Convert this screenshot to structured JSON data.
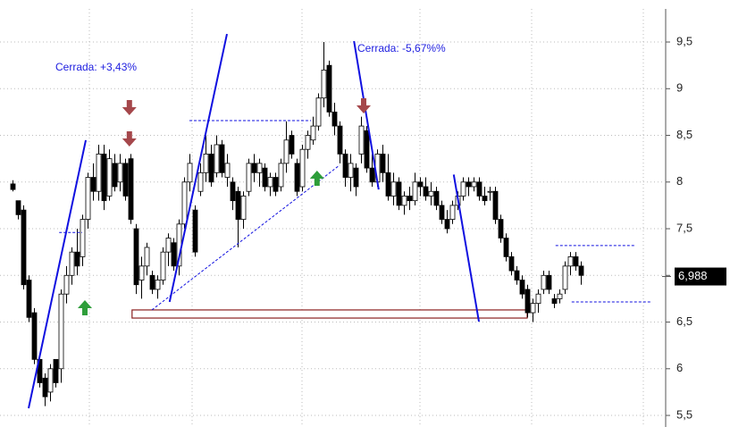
{
  "chart_data": {
    "type": "candlestick",
    "ylim": [
      5.376,
      9.95
    ],
    "yticks": [
      {
        "value": 5.5,
        "label": "5,5"
      },
      6,
      {
        "value": 6.5,
        "label": "6,5"
      },
      7,
      {
        "value": 7.5,
        "label": "7,5"
      },
      8,
      {
        "value": 8.5,
        "label": "8,5"
      },
      9,
      {
        "value": 9.5,
        "label": "9,5"
      }
    ],
    "grid": true,
    "up_color": "#ffffff",
    "down_color": "#000000",
    "last": {
      "value": 6.988,
      "label": "6,988"
    },
    "annotations": [
      "Cerrada: +3,43%",
      "Cerrada: -5,67%%"
    ],
    "candles": [
      [
        7.98,
        8.02,
        7.9,
        7.92
      ],
      [
        7.8,
        7.8,
        7.6,
        7.65
      ],
      [
        7.7,
        7.75,
        6.85,
        6.9
      ],
      [
        6.95,
        7.0,
        6.5,
        6.55
      ],
      [
        6.6,
        6.65,
        6.05,
        6.1
      ],
      [
        6.1,
        6.15,
        5.8,
        5.85
      ],
      [
        5.9,
        5.95,
        5.6,
        5.7
      ],
      [
        5.75,
        6.05,
        5.65,
        6.0
      ],
      [
        6.1,
        6.1,
        5.8,
        5.85
      ],
      [
        6.0,
        6.85,
        5.85,
        6.8
      ],
      [
        6.8,
        7.1,
        6.7,
        7.0
      ],
      [
        7.0,
        7.3,
        6.9,
        7.25
      ],
      [
        7.25,
        7.5,
        7.0,
        7.1
      ],
      [
        7.2,
        7.65,
        7.1,
        7.6
      ],
      [
        7.6,
        8.1,
        7.5,
        8.05
      ],
      [
        8.05,
        8.2,
        7.8,
        7.9
      ],
      [
        7.9,
        8.4,
        7.8,
        8.3
      ],
      [
        8.3,
        8.4,
        7.7,
        7.8
      ],
      [
        7.85,
        8.35,
        7.8,
        8.25
      ],
      [
        8.2,
        8.3,
        7.9,
        7.95
      ],
      [
        8.0,
        8.3,
        7.9,
        8.2
      ],
      [
        8.2,
        8.25,
        7.8,
        7.85
      ],
      [
        8.25,
        8.3,
        7.55,
        7.6
      ],
      [
        7.5,
        7.55,
        6.8,
        6.9
      ],
      [
        6.95,
        7.2,
        6.75,
        7.1
      ],
      [
        7.1,
        7.35,
        7.0,
        7.3
      ],
      [
        7.0,
        7.05,
        6.8,
        6.85
      ],
      [
        6.85,
        7.0,
        6.75,
        6.95
      ],
      [
        6.95,
        7.3,
        6.9,
        7.25
      ],
      [
        7.25,
        7.45,
        7.1,
        7.4
      ],
      [
        7.35,
        7.4,
        7.05,
        7.1
      ],
      [
        7.1,
        7.6,
        7.0,
        7.55
      ],
      [
        7.55,
        8.05,
        7.5,
        8.0
      ],
      [
        8.0,
        8.3,
        7.9,
        8.2
      ],
      [
        7.7,
        7.75,
        7.2,
        7.25
      ],
      [
        7.9,
        8.2,
        7.85,
        8.1
      ],
      [
        8.1,
        8.5,
        8.0,
        8.3
      ],
      [
        8.3,
        8.4,
        7.95,
        8.0
      ],
      [
        8.1,
        8.5,
        8.05,
        8.4
      ],
      [
        8.4,
        8.45,
        8.05,
        8.1
      ],
      [
        8.05,
        8.3,
        7.95,
        8.2
      ],
      [
        8.0,
        8.05,
        7.7,
        7.8
      ],
      [
        7.9,
        7.95,
        7.3,
        7.6
      ],
      [
        7.6,
        7.9,
        7.5,
        7.85
      ],
      [
        7.9,
        8.25,
        7.85,
        8.2
      ],
      [
        8.2,
        8.3,
        8.0,
        8.1
      ],
      [
        8.1,
        8.25,
        7.95,
        8.2
      ],
      [
        8.15,
        8.2,
        7.9,
        7.95
      ],
      [
        7.95,
        8.1,
        7.85,
        8.05
      ],
      [
        8.05,
        8.1,
        7.85,
        7.9
      ],
      [
        7.95,
        8.25,
        7.9,
        8.2
      ],
      [
        8.2,
        8.65,
        8.1,
        8.45
      ],
      [
        8.5,
        8.55,
        8.25,
        8.3
      ],
      [
        8.2,
        8.25,
        7.85,
        7.9
      ],
      [
        7.95,
        8.4,
        7.9,
        8.35
      ],
      [
        8.35,
        8.55,
        8.25,
        8.5
      ],
      [
        8.45,
        8.7,
        8.4,
        8.6
      ],
      [
        8.6,
        8.95,
        8.55,
        8.9
      ],
      [
        8.9,
        9.5,
        8.8,
        9.2
      ],
      [
        9.25,
        9.3,
        8.7,
        8.75
      ],
      [
        8.75,
        8.85,
        8.5,
        8.6
      ],
      [
        8.6,
        8.65,
        8.2,
        8.3
      ],
      [
        8.3,
        8.35,
        7.95,
        8.05
      ],
      [
        8.05,
        8.3,
        7.9,
        8.2
      ],
      [
        8.15,
        8.2,
        7.85,
        7.95
      ],
      [
        8.3,
        8.7,
        8.2,
        8.6
      ],
      [
        8.55,
        8.6,
        8.1,
        8.15
      ],
      [
        8.15,
        8.3,
        7.95,
        8.0
      ],
      [
        8.0,
        8.35,
        7.95,
        8.3
      ],
      [
        8.3,
        8.4,
        8.0,
        8.1
      ],
      [
        8.1,
        8.3,
        7.8,
        7.85
      ],
      [
        7.85,
        8.1,
        7.75,
        8.0
      ],
      [
        8.0,
        8.05,
        7.7,
        7.75
      ],
      [
        7.75,
        7.9,
        7.65,
        7.85
      ],
      [
        7.85,
        7.95,
        7.7,
        7.8
      ],
      [
        7.8,
        8.1,
        7.75,
        8.0
      ],
      [
        8.0,
        8.05,
        7.85,
        7.95
      ],
      [
        7.95,
        8.05,
        7.8,
        7.85
      ],
      [
        7.85,
        8.0,
        7.75,
        7.9
      ],
      [
        7.9,
        7.95,
        7.7,
        7.75
      ],
      [
        7.75,
        7.8,
        7.55,
        7.6
      ],
      [
        7.6,
        7.7,
        7.45,
        7.5
      ],
      [
        7.6,
        7.8,
        7.55,
        7.75
      ],
      [
        7.75,
        7.9,
        7.7,
        7.85
      ],
      [
        7.85,
        8.05,
        7.8,
        8.0
      ],
      [
        8.0,
        8.05,
        7.85,
        7.95
      ],
      [
        7.95,
        8.05,
        7.9,
        8.0
      ],
      [
        8.0,
        8.05,
        7.8,
        7.85
      ],
      [
        7.85,
        7.95,
        7.75,
        7.8
      ],
      [
        7.9,
        7.95,
        7.8,
        7.9
      ],
      [
        7.9,
        7.95,
        7.55,
        7.6
      ],
      [
        7.6,
        7.65,
        7.35,
        7.4
      ],
      [
        7.4,
        7.45,
        7.15,
        7.2
      ],
      [
        7.2,
        7.25,
        7.0,
        7.05
      ],
      [
        7.05,
        7.1,
        6.9,
        6.95
      ],
      [
        6.95,
        7.0,
        6.75,
        6.8
      ],
      [
        6.85,
        6.9,
        6.55,
        6.6
      ],
      [
        6.6,
        6.75,
        6.5,
        6.7
      ],
      [
        6.7,
        6.85,
        6.6,
        6.8
      ],
      [
        6.85,
        7.05,
        6.8,
        7.0
      ],
      [
        7.0,
        7.05,
        6.8,
        6.85
      ],
      [
        6.75,
        6.8,
        6.65,
        6.7
      ],
      [
        6.75,
        6.85,
        6.7,
        6.8
      ],
      [
        6.85,
        7.15,
        6.8,
        7.1
      ],
      [
        7.1,
        7.25,
        7.0,
        7.2
      ],
      [
        7.2,
        7.25,
        7.05,
        7.1
      ],
      [
        7.1,
        7.15,
        6.9,
        7.0
      ]
    ],
    "trendlines": [
      {
        "x": [
          3,
          13.67
        ],
        "y": [
          5.577,
          8.448
        ],
        "style": "solid"
      },
      {
        "x": [
          29.3,
          40
        ],
        "y": [
          6.716,
          9.586
        ],
        "style": "solid"
      },
      {
        "x": [
          63.7,
          68.3
        ],
        "y": [
          9.51,
          7.92
        ],
        "style": "solid"
      },
      {
        "x": [
          82.3,
          87
        ],
        "y": [
          8.08,
          6.505
        ],
        "style": "solid"
      },
      {
        "x": [
          26,
          61
        ],
        "y": [
          6.63,
          8.18
        ],
        "style": "dashed"
      },
      {
        "x": [
          33,
          55.7
        ],
        "y": [
          8.658,
          8.658
        ],
        "style": "dashed"
      },
      {
        "x": [
          8.7,
          13
        ],
        "y": [
          7.46,
          7.46
        ],
        "style": "dashed"
      },
      {
        "x": [
          101.3,
          116.3
        ],
        "y": [
          7.32,
          7.32
        ],
        "style": "dashed"
      },
      {
        "x": [
          104.3,
          119
        ],
        "y": [
          6.716,
          6.716
        ],
        "style": "dashed"
      }
    ],
    "zone": {
      "x": [
        22.3,
        96
      ],
      "y": [
        6.543,
        6.63
      ]
    },
    "signals": [
      {
        "x": 21.8,
        "y": 8.802,
        "dir": "down"
      },
      {
        "x": 21.8,
        "y": 8.467,
        "dir": "down"
      },
      {
        "x": 65.5,
        "y": 8.821,
        "dir": "down"
      },
      {
        "x": 13.5,
        "y": 6.649,
        "dir": "up"
      },
      {
        "x": 56.8,
        "y": 8.036,
        "dir": "up"
      }
    ]
  }
}
